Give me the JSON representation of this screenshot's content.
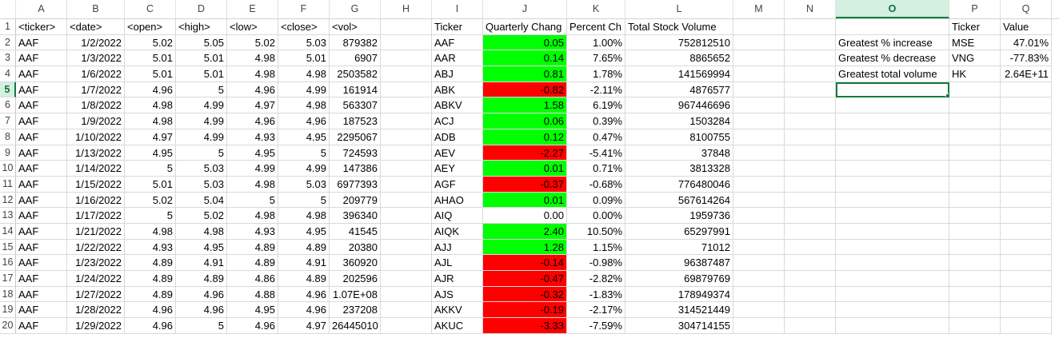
{
  "app": {
    "name": "Excel spreadsheet",
    "active_cell": "O5"
  },
  "colors": {
    "positive": "#00ff00",
    "negative": "#ff0000",
    "selection": "#107c41"
  },
  "columns": [
    "A",
    "B",
    "C",
    "D",
    "E",
    "F",
    "G",
    "H",
    "I",
    "J",
    "K",
    "L",
    "M",
    "N",
    "O",
    "P",
    "Q"
  ],
  "row_numbers": [
    "1",
    "2",
    "3",
    "4",
    "5",
    "6",
    "7",
    "8",
    "9",
    "10",
    "11",
    "12",
    "13",
    "14",
    "15",
    "16",
    "17",
    "18",
    "19",
    "20"
  ],
  "headers": {
    "A": "<ticker>",
    "B": "<date>",
    "C": "<open>",
    "D": "<high>",
    "E": "<low>",
    "F": "<close>",
    "G": "<vol>",
    "I": "Ticker",
    "J": "Quarterly Chang",
    "K": "Percent Ch",
    "L": "Total Stock Volume",
    "P": "Ticker",
    "Q": "Value"
  },
  "raw_data": [
    [
      "AAF",
      "1/2/2022",
      "5.02",
      "5.05",
      "5.02",
      "5.03",
      "879382"
    ],
    [
      "AAF",
      "1/3/2022",
      "5.01",
      "5.01",
      "4.98",
      "5.01",
      "6907"
    ],
    [
      "AAF",
      "1/6/2022",
      "5.01",
      "5.01",
      "4.98",
      "4.98",
      "2503582"
    ],
    [
      "AAF",
      "1/7/2022",
      "4.96",
      "5",
      "4.96",
      "4.99",
      "161914"
    ],
    [
      "AAF",
      "1/8/2022",
      "4.98",
      "4.99",
      "4.97",
      "4.98",
      "563307"
    ],
    [
      "AAF",
      "1/9/2022",
      "4.98",
      "4.99",
      "4.96",
      "4.96",
      "187523"
    ],
    [
      "AAF",
      "1/10/2022",
      "4.97",
      "4.99",
      "4.93",
      "4.95",
      "2295067"
    ],
    [
      "AAF",
      "1/13/2022",
      "4.95",
      "5",
      "4.95",
      "5",
      "724593"
    ],
    [
      "AAF",
      "1/14/2022",
      "5",
      "5.03",
      "4.99",
      "4.99",
      "147386"
    ],
    [
      "AAF",
      "1/15/2022",
      "5.01",
      "5.03",
      "4.98",
      "5.03",
      "6977393"
    ],
    [
      "AAF",
      "1/16/2022",
      "5.02",
      "5.04",
      "5",
      "5",
      "209779"
    ],
    [
      "AAF",
      "1/17/2022",
      "5",
      "5.02",
      "4.98",
      "4.98",
      "396340"
    ],
    [
      "AAF",
      "1/21/2022",
      "4.98",
      "4.98",
      "4.93",
      "4.95",
      "41545"
    ],
    [
      "AAF",
      "1/22/2022",
      "4.93",
      "4.95",
      "4.89",
      "4.89",
      "20380"
    ],
    [
      "AAF",
      "1/23/2022",
      "4.89",
      "4.91",
      "4.89",
      "4.91",
      "360920"
    ],
    [
      "AAF",
      "1/24/2022",
      "4.89",
      "4.89",
      "4.86",
      "4.89",
      "202596"
    ],
    [
      "AAF",
      "1/27/2022",
      "4.89",
      "4.96",
      "4.88",
      "4.96",
      "1.07E+08"
    ],
    [
      "AAF",
      "1/28/2022",
      "4.96",
      "4.96",
      "4.95",
      "4.96",
      "237208"
    ],
    [
      "AAF",
      "1/29/2022",
      "4.96",
      "5",
      "4.96",
      "4.97",
      "26445010"
    ]
  ],
  "summary": [
    [
      "AAF",
      "0.05",
      "1.00%",
      "752812510",
      "pos"
    ],
    [
      "AAR",
      "0.14",
      "7.65%",
      "8865652",
      "pos"
    ],
    [
      "ABJ",
      "0.81",
      "1.78%",
      "141569994",
      "pos"
    ],
    [
      "ABK",
      "-0.82",
      "-2.11%",
      "4876577",
      "neg"
    ],
    [
      "ABKV",
      "1.58",
      "6.19%",
      "967446696",
      "pos"
    ],
    [
      "ACJ",
      "0.06",
      "0.39%",
      "1503284",
      "pos"
    ],
    [
      "ADB",
      "0.12",
      "0.47%",
      "8100755",
      "pos"
    ],
    [
      "AEV",
      "-2.27",
      "-5.41%",
      "37848",
      "neg"
    ],
    [
      "AEY",
      "0.01",
      "0.71%",
      "3813328",
      "pos"
    ],
    [
      "AGF",
      "-0.37",
      "-0.68%",
      "776480046",
      "neg"
    ],
    [
      "AHAO",
      "0.01",
      "0.09%",
      "567614264",
      "pos"
    ],
    [
      "AIQ",
      "0.00",
      "0.00%",
      "1959736",
      "none"
    ],
    [
      "AIQK",
      "2.40",
      "10.50%",
      "65297991",
      "pos"
    ],
    [
      "AJJ",
      "1.28",
      "1.15%",
      "71012",
      "pos"
    ],
    [
      "AJL",
      "-0.14",
      "-0.98%",
      "96387487",
      "neg"
    ],
    [
      "AJR",
      "-0.47",
      "-2.82%",
      "69879769",
      "neg"
    ],
    [
      "AJS",
      "-0.32",
      "-1.83%",
      "178949374",
      "neg"
    ],
    [
      "AKKV",
      "-0.19",
      "-2.17%",
      "314521449",
      "neg"
    ],
    [
      "AKUC",
      "-3.33",
      "-7.59%",
      "304714155",
      "neg"
    ]
  ],
  "greatest": [
    [
      "Greatest % increase",
      "MSE",
      "47.01%"
    ],
    [
      "Greatest % decrease",
      "VNG",
      "-77.83%"
    ],
    [
      "Greatest total volume",
      "HK",
      "2.64E+11"
    ]
  ]
}
